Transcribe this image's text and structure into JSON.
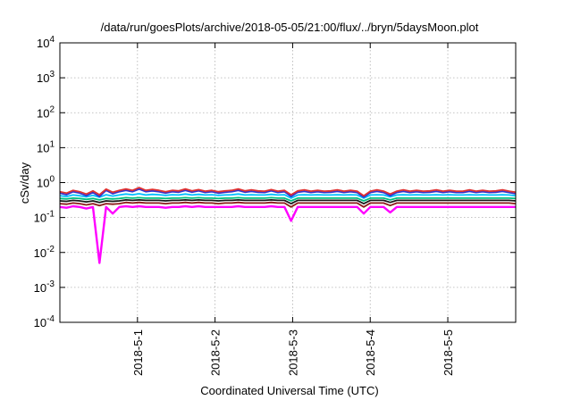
{
  "chart_data": {
    "type": "line",
    "title": "/data/run/goesPlots/archive/2018-05-05/21:00/flux/../bryn/5daysMoon.plot",
    "xlabel": "Coordinated Universal Time (UTC)",
    "ylabel": "cSv/day",
    "yscale": "log",
    "ylim": [
      0.0001,
      10000
    ],
    "xlim": [
      "2018-04-30 00:00",
      "2018-05-05 21:00"
    ],
    "grid": true,
    "x_ticks": [
      {
        "label": "2018-5-1",
        "value": "2018-05-01 00:00"
      },
      {
        "label": "2018-5-2",
        "value": "2018-05-02 00:00"
      },
      {
        "label": "2018-5-3",
        "value": "2018-05-03 00:00"
      },
      {
        "label": "2018-5-4",
        "value": "2018-05-04 00:00"
      },
      {
        "label": "2018-5-5",
        "value": "2018-05-05 00:00"
      }
    ],
    "y_ticks": [
      {
        "base": "10",
        "exp": "-4",
        "value": 0.0001
      },
      {
        "base": "10",
        "exp": "-3",
        "value": 0.001
      },
      {
        "base": "10",
        "exp": "-2",
        "value": 0.01
      },
      {
        "base": "10",
        "exp": "-1",
        "value": 0.1
      },
      {
        "base": "10",
        "exp": "0",
        "value": 1
      },
      {
        "base": "10",
        "exp": "1",
        "value": 10
      },
      {
        "base": "10",
        "exp": "2",
        "value": 100
      },
      {
        "base": "10",
        "exp": "3",
        "value": 1000
      },
      {
        "base": "10",
        "exp": "4",
        "value": 10000
      }
    ],
    "series": [
      {
        "color": "#ff00ff",
        "values": [
          0.2,
          0.19,
          0.21,
          0.2,
          0.18,
          0.2,
          0.005,
          0.2,
          0.13,
          0.2,
          0.21,
          0.2,
          0.21,
          0.2,
          0.2,
          0.2,
          0.19,
          0.2,
          0.2,
          0.21,
          0.2,
          0.21,
          0.2,
          0.2,
          0.2,
          0.2,
          0.2,
          0.21,
          0.2,
          0.2,
          0.2,
          0.2,
          0.21,
          0.2,
          0.2,
          0.08,
          0.2,
          0.2,
          0.2,
          0.2,
          0.2,
          0.2,
          0.2,
          0.2,
          0.2,
          0.2,
          0.13,
          0.2,
          0.2,
          0.2,
          0.14,
          0.2,
          0.2,
          0.2,
          0.2,
          0.2,
          0.2,
          0.2,
          0.2,
          0.2,
          0.2,
          0.2,
          0.2,
          0.2,
          0.2,
          0.2,
          0.2,
          0.2,
          0.2,
          0.2
        ]
      },
      {
        "color": "#8b1a1a",
        "values": [
          0.25,
          0.24,
          0.26,
          0.25,
          0.23,
          0.25,
          0.22,
          0.25,
          0.24,
          0.25,
          0.27,
          0.26,
          0.27,
          0.26,
          0.26,
          0.26,
          0.25,
          0.26,
          0.26,
          0.27,
          0.26,
          0.27,
          0.26,
          0.26,
          0.25,
          0.26,
          0.26,
          0.27,
          0.26,
          0.26,
          0.26,
          0.26,
          0.27,
          0.26,
          0.26,
          0.2,
          0.26,
          0.26,
          0.26,
          0.26,
          0.26,
          0.26,
          0.26,
          0.26,
          0.26,
          0.26,
          0.2,
          0.26,
          0.26,
          0.26,
          0.22,
          0.26,
          0.26,
          0.26,
          0.26,
          0.26,
          0.26,
          0.26,
          0.26,
          0.26,
          0.26,
          0.26,
          0.26,
          0.26,
          0.26,
          0.26,
          0.26,
          0.26,
          0.26,
          0.25
        ]
      },
      {
        "color": "#1a1a1a",
        "values": [
          0.3,
          0.29,
          0.31,
          0.3,
          0.28,
          0.3,
          0.27,
          0.3,
          0.29,
          0.3,
          0.32,
          0.31,
          0.32,
          0.31,
          0.31,
          0.31,
          0.3,
          0.31,
          0.31,
          0.32,
          0.31,
          0.32,
          0.31,
          0.31,
          0.3,
          0.31,
          0.31,
          0.32,
          0.31,
          0.31,
          0.31,
          0.31,
          0.32,
          0.31,
          0.31,
          0.25,
          0.31,
          0.31,
          0.31,
          0.31,
          0.31,
          0.31,
          0.31,
          0.31,
          0.31,
          0.31,
          0.25,
          0.31,
          0.31,
          0.31,
          0.27,
          0.31,
          0.31,
          0.31,
          0.31,
          0.31,
          0.31,
          0.31,
          0.31,
          0.31,
          0.31,
          0.31,
          0.31,
          0.31,
          0.31,
          0.31,
          0.31,
          0.31,
          0.31,
          0.3
        ]
      },
      {
        "color": "#00c080",
        "values": [
          0.35,
          0.34,
          0.36,
          0.35,
          0.33,
          0.35,
          0.32,
          0.35,
          0.34,
          0.35,
          0.37,
          0.36,
          0.37,
          0.36,
          0.36,
          0.36,
          0.35,
          0.36,
          0.36,
          0.37,
          0.36,
          0.37,
          0.36,
          0.36,
          0.35,
          0.36,
          0.36,
          0.37,
          0.36,
          0.36,
          0.36,
          0.36,
          0.37,
          0.36,
          0.36,
          0.3,
          0.36,
          0.36,
          0.36,
          0.36,
          0.36,
          0.36,
          0.36,
          0.36,
          0.36,
          0.36,
          0.3,
          0.36,
          0.36,
          0.36,
          0.32,
          0.36,
          0.36,
          0.36,
          0.36,
          0.36,
          0.36,
          0.36,
          0.36,
          0.36,
          0.36,
          0.36,
          0.36,
          0.36,
          0.36,
          0.36,
          0.36,
          0.36,
          0.36,
          0.35
        ]
      },
      {
        "color": "#00bfff",
        "values": [
          0.42,
          0.4,
          0.44,
          0.42,
          0.39,
          0.43,
          0.38,
          0.45,
          0.41,
          0.44,
          0.47,
          0.45,
          0.48,
          0.44,
          0.46,
          0.45,
          0.43,
          0.45,
          0.44,
          0.47,
          0.44,
          0.46,
          0.44,
          0.45,
          0.43,
          0.44,
          0.45,
          0.47,
          0.44,
          0.45,
          0.44,
          0.44,
          0.46,
          0.44,
          0.45,
          0.36,
          0.44,
          0.45,
          0.44,
          0.45,
          0.44,
          0.44,
          0.45,
          0.44,
          0.45,
          0.44,
          0.36,
          0.44,
          0.45,
          0.44,
          0.39,
          0.44,
          0.45,
          0.44,
          0.45,
          0.44,
          0.44,
          0.45,
          0.44,
          0.45,
          0.44,
          0.44,
          0.45,
          0.44,
          0.45,
          0.44,
          0.44,
          0.45,
          0.44,
          0.42
        ]
      },
      {
        "color": "#3333cc",
        "values": [
          0.5,
          0.45,
          0.55,
          0.5,
          0.42,
          0.52,
          0.4,
          0.6,
          0.48,
          0.55,
          0.6,
          0.55,
          0.65,
          0.55,
          0.58,
          0.55,
          0.5,
          0.55,
          0.53,
          0.6,
          0.53,
          0.58,
          0.52,
          0.55,
          0.5,
          0.53,
          0.55,
          0.6,
          0.53,
          0.56,
          0.53,
          0.52,
          0.58,
          0.52,
          0.55,
          0.4,
          0.53,
          0.56,
          0.52,
          0.55,
          0.52,
          0.53,
          0.56,
          0.52,
          0.55,
          0.52,
          0.38,
          0.52,
          0.56,
          0.52,
          0.42,
          0.52,
          0.56,
          0.52,
          0.55,
          0.52,
          0.53,
          0.56,
          0.52,
          0.55,
          0.52,
          0.52,
          0.56,
          0.52,
          0.55,
          0.52,
          0.53,
          0.56,
          0.52,
          0.48
        ]
      },
      {
        "color": "#e03030",
        "values": [
          0.55,
          0.5,
          0.6,
          0.55,
          0.47,
          0.58,
          0.45,
          0.65,
          0.53,
          0.6,
          0.66,
          0.6,
          0.72,
          0.6,
          0.64,
          0.6,
          0.55,
          0.6,
          0.58,
          0.66,
          0.58,
          0.63,
          0.57,
          0.6,
          0.55,
          0.58,
          0.6,
          0.66,
          0.58,
          0.62,
          0.58,
          0.57,
          0.63,
          0.57,
          0.6,
          0.45,
          0.58,
          0.62,
          0.57,
          0.6,
          0.57,
          0.58,
          0.62,
          0.57,
          0.6,
          0.57,
          0.42,
          0.57,
          0.62,
          0.57,
          0.47,
          0.57,
          0.62,
          0.57,
          0.6,
          0.57,
          0.58,
          0.62,
          0.57,
          0.6,
          0.57,
          0.57,
          0.62,
          0.57,
          0.6,
          0.57,
          0.58,
          0.62,
          0.57,
          0.53
        ]
      }
    ]
  }
}
